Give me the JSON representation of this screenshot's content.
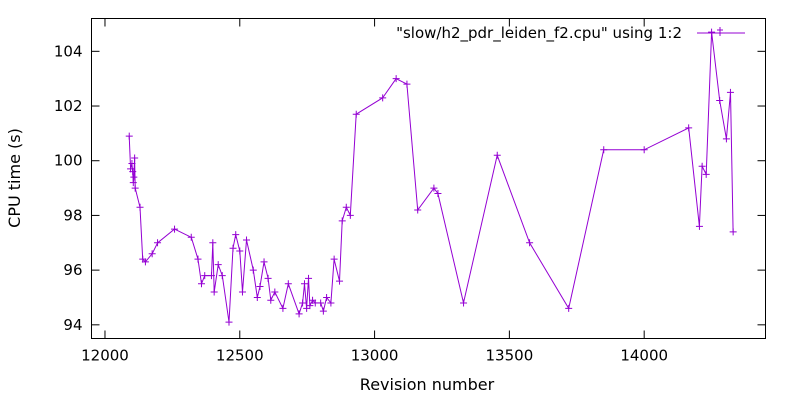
{
  "chart_data": {
    "type": "line",
    "title": "",
    "xlabel": "Revision number",
    "ylabel": "CPU time (s)",
    "xlim": [
      11950,
      14450
    ],
    "ylim": [
      93.5,
      105.2
    ],
    "x_ticks": [
      12000,
      12500,
      13000,
      13500,
      14000
    ],
    "x_tick_labels": [
      "12000",
      "12500",
      "13000",
      "13500",
      "14000"
    ],
    "y_ticks": [
      94,
      96,
      98,
      100,
      102,
      104
    ],
    "y_tick_labels": [
      "94",
      "96",
      "98",
      "100",
      "102",
      "104"
    ],
    "grid": false,
    "legend_position": "top-right",
    "series": [
      {
        "name": "\"slow/h2_pdr_leiden_f2.cpu\" using 1:2",
        "color": "#9400d3",
        "marker": "plus",
        "points": [
          [
            12090,
            100.9
          ],
          [
            12095,
            99.7
          ],
          [
            12100,
            99.9
          ],
          [
            12103,
            99.6
          ],
          [
            12105,
            99.2
          ],
          [
            12107,
            99.4
          ],
          [
            12110,
            100.1
          ],
          [
            12112,
            99.0
          ],
          [
            12130,
            98.3
          ],
          [
            12140,
            96.4
          ],
          [
            12150,
            96.3
          ],
          [
            12175,
            96.6
          ],
          [
            12195,
            97.0
          ],
          [
            12258,
            97.5
          ],
          [
            12320,
            97.2
          ],
          [
            12345,
            96.4
          ],
          [
            12358,
            95.5
          ],
          [
            12370,
            95.8
          ],
          [
            12395,
            95.8
          ],
          [
            12400,
            97.0
          ],
          [
            12405,
            95.2
          ],
          [
            12420,
            96.2
          ],
          [
            12435,
            95.8
          ],
          [
            12460,
            94.1
          ],
          [
            12475,
            96.8
          ],
          [
            12485,
            97.3
          ],
          [
            12500,
            96.7
          ],
          [
            12510,
            95.2
          ],
          [
            12525,
            97.1
          ],
          [
            12550,
            96.0
          ],
          [
            12565,
            95.0
          ],
          [
            12575,
            95.4
          ],
          [
            12590,
            96.3
          ],
          [
            12605,
            95.7
          ],
          [
            12615,
            94.9
          ],
          [
            12630,
            95.2
          ],
          [
            12660,
            94.6
          ],
          [
            12680,
            95.5
          ],
          [
            12720,
            94.4
          ],
          [
            12733,
            94.8
          ],
          [
            12740,
            95.5
          ],
          [
            12748,
            94.6
          ],
          [
            12755,
            95.7
          ],
          [
            12760,
            94.7
          ],
          [
            12770,
            94.9
          ],
          [
            12780,
            94.8
          ],
          [
            12800,
            94.8
          ],
          [
            12810,
            94.5
          ],
          [
            12822,
            95.0
          ],
          [
            12838,
            94.8
          ],
          [
            12850,
            96.4
          ],
          [
            12870,
            95.6
          ],
          [
            12880,
            97.8
          ],
          [
            12895,
            98.3
          ],
          [
            12910,
            98.0
          ],
          [
            12932,
            101.7
          ],
          [
            13030,
            102.3
          ],
          [
            13080,
            103.0
          ],
          [
            13120,
            102.8
          ],
          [
            13160,
            98.2
          ],
          [
            13220,
            99.0
          ],
          [
            13235,
            98.8
          ],
          [
            13330,
            94.8
          ],
          [
            13455,
            100.2
          ],
          [
            13575,
            97.0
          ],
          [
            13720,
            94.6
          ],
          [
            13850,
            100.4
          ],
          [
            14000,
            100.4
          ],
          [
            14165,
            101.2
          ],
          [
            14205,
            97.6
          ],
          [
            14215,
            99.8
          ],
          [
            14230,
            99.5
          ],
          [
            14250,
            104.7
          ],
          [
            14280,
            102.2
          ],
          [
            14305,
            100.8
          ],
          [
            14320,
            102.5
          ],
          [
            14330,
            97.4
          ]
        ]
      }
    ]
  }
}
